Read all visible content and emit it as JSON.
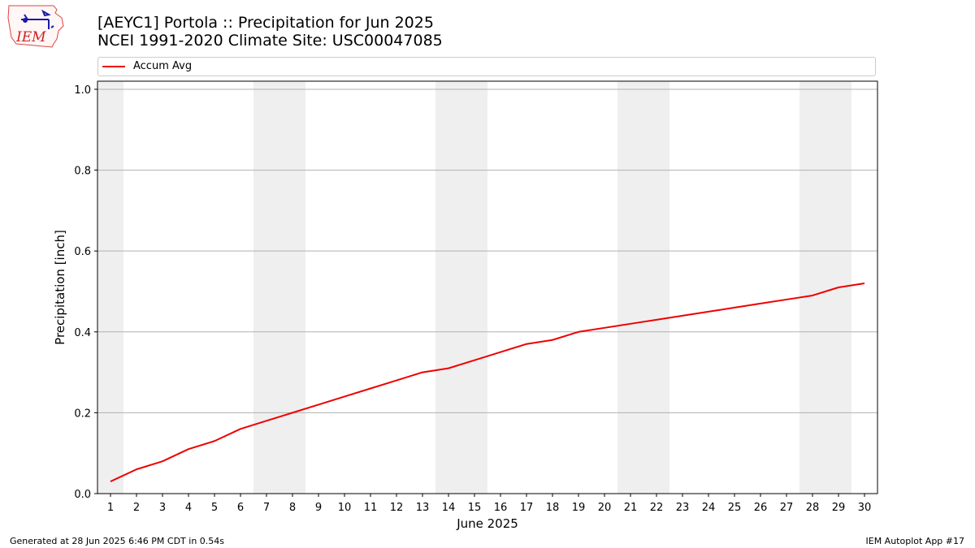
{
  "header": {
    "title_line1": "[AEYC1] Portola :: Precipitation for Jun 2025",
    "title_line2": "NCEI 1991-2020 Climate Site: USC00047085"
  },
  "logo": {
    "text": "IEM",
    "icon": "iem-iowa-logo",
    "color": "#cc2222"
  },
  "footer": {
    "generated": "Generated at 28 Jun 2025 6:46 PM CDT in 0.54s",
    "app": "IEM Autoplot App #17"
  },
  "chart_data": {
    "type": "line",
    "xlabel": "June 2025",
    "ylabel": "Precipitation [inch]",
    "xlim": [
      0.5,
      30.5
    ],
    "ylim": [
      0,
      1.02
    ],
    "x": [
      1,
      2,
      3,
      4,
      5,
      6,
      7,
      8,
      9,
      10,
      11,
      12,
      13,
      14,
      15,
      16,
      17,
      18,
      19,
      20,
      21,
      22,
      23,
      24,
      25,
      26,
      27,
      28,
      29,
      30
    ],
    "y_ticks": [
      0.0,
      0.2,
      0.4,
      0.6,
      0.8,
      1.0
    ],
    "y_tick_labels": [
      "0.0",
      "0.2",
      "0.4",
      "0.6",
      "0.8",
      "1.0"
    ],
    "x_tick_labels": [
      "1",
      "2",
      "3",
      "4",
      "5",
      "6",
      "7",
      "8",
      "9",
      "10",
      "11",
      "12",
      "13",
      "14",
      "15",
      "16",
      "17",
      "18",
      "19",
      "20",
      "21",
      "22",
      "23",
      "24",
      "25",
      "26",
      "27",
      "28",
      "29",
      "30"
    ],
    "grid": "horizontal",
    "legend_position": "top",
    "weekend_shading": [
      [
        0.5,
        1.5
      ],
      [
        6.5,
        8.5
      ],
      [
        13.5,
        15.5
      ],
      [
        20.5,
        22.5
      ],
      [
        27.5,
        29.5
      ]
    ],
    "series": [
      {
        "name": "Accum Avg",
        "color": "#ee0000",
        "values": [
          0.03,
          0.06,
          0.08,
          0.11,
          0.13,
          0.16,
          0.18,
          0.2,
          0.22,
          0.24,
          0.26,
          0.28,
          0.3,
          0.31,
          0.33,
          0.35,
          0.37,
          0.38,
          0.4,
          0.41,
          0.42,
          0.43,
          0.44,
          0.45,
          0.46,
          0.47,
          0.48,
          0.49,
          0.51,
          0.52
        ]
      }
    ]
  }
}
